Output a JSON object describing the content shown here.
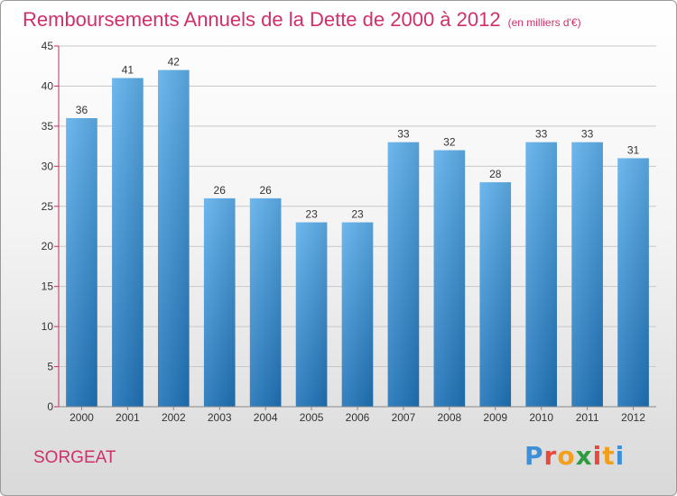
{
  "header": {
    "title": "Remboursements Annuels de la Dette de 2000 à 2012",
    "unit": "(en milliers d'€)"
  },
  "footer": {
    "commune": "SORGEAT",
    "logo_letters": [
      "P",
      "r",
      "o",
      "x",
      "i",
      "t",
      "i"
    ],
    "logo_colors": [
      "#3f8fd8",
      "#e8493b",
      "#f2a01c",
      "#2e9c3f",
      "#e8493b",
      "#f2a01c",
      "#3f8fd8"
    ]
  },
  "colors": {
    "bar_top": "#5eb0ec",
    "bar_bottom": "#1f73b8",
    "axis": "#c03060",
    "grid": "#c8c8c8"
  },
  "chart_data": {
    "type": "bar",
    "title": "Remboursements Annuels de la Dette de 2000 à 2012",
    "categories": [
      "2000",
      "2001",
      "2002",
      "2003",
      "2004",
      "2005",
      "2006",
      "2007",
      "2008",
      "2009",
      "2010",
      "2011",
      "2012"
    ],
    "values": [
      36,
      41,
      42,
      26,
      26,
      23,
      23,
      33,
      32,
      28,
      33,
      33,
      31
    ],
    "ylim": [
      0,
      45
    ],
    "yticks": [
      0,
      5,
      10,
      15,
      20,
      25,
      30,
      35,
      40,
      45
    ],
    "xlabel": "",
    "ylabel": "",
    "grid": true
  }
}
